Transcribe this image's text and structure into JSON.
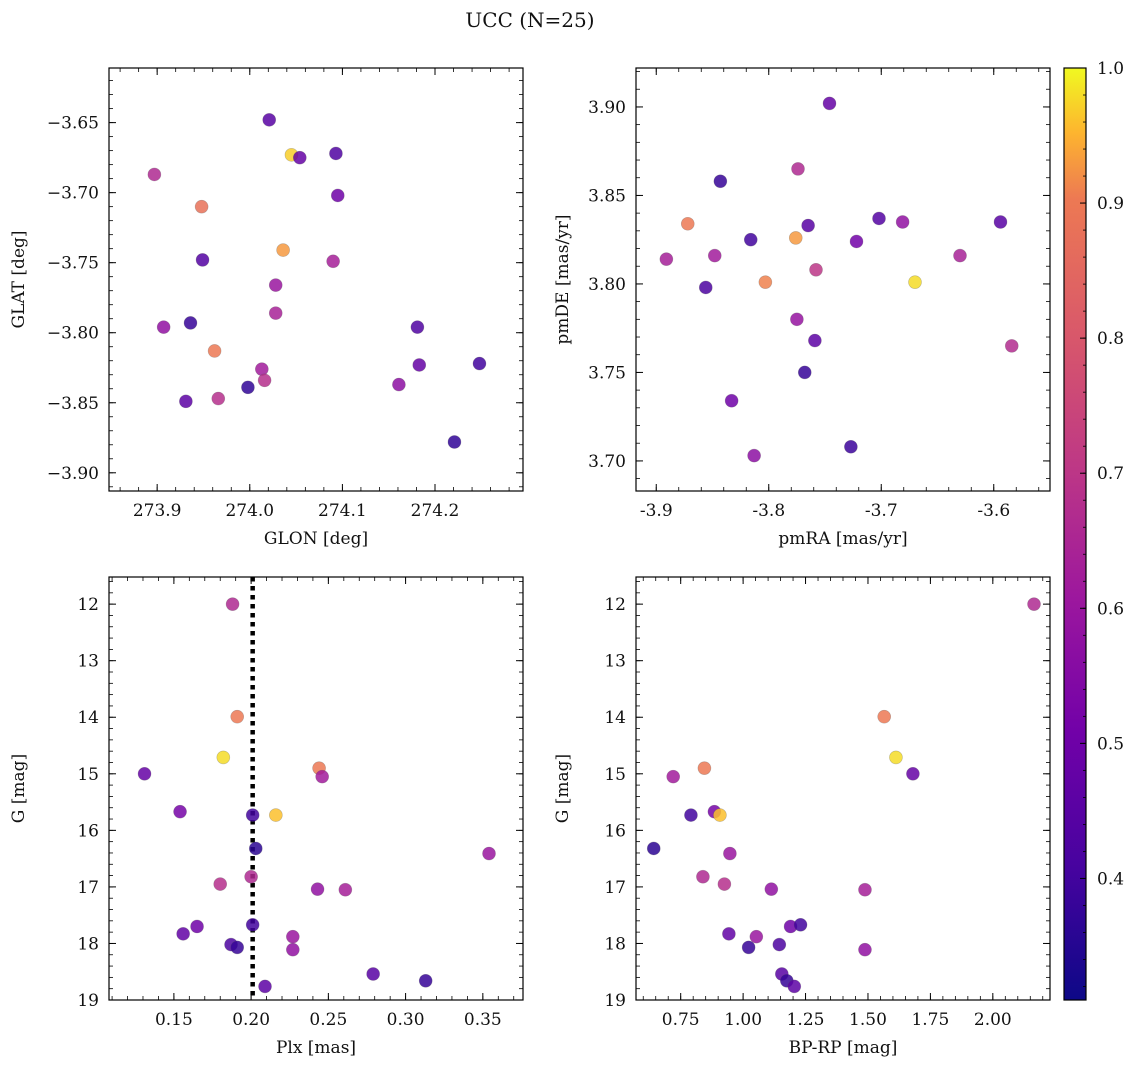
{
  "figure": {
    "suptitle": "UCC (N=25)"
  },
  "colors": {
    "colormap": "plasma",
    "vline": "#000000"
  },
  "colorbar": {
    "range": [
      0.31,
      1.0
    ],
    "ticks": [
      0.4,
      0.5,
      0.6,
      0.7,
      0.8,
      0.9,
      1.0
    ]
  },
  "chart_data": [
    {
      "type": "scatter",
      "panel": "top-left",
      "xlabel": "GLON [deg]",
      "ylabel": "GLAT [deg]",
      "xlim": [
        273.848,
        274.295
      ],
      "ylim": [
        -3.913,
        -3.611
      ],
      "xticks": [
        273.9,
        274.0,
        274.1,
        274.2
      ],
      "xtick_decimals": 1,
      "yticks": [
        -3.65,
        -3.7,
        -3.75,
        -3.8,
        -3.85,
        -3.9
      ],
      "ytick_decimals": 2,
      "y_inverted": false,
      "points": [
        {
          "x": 274.021,
          "y": -3.648,
          "c": 0.45
        },
        {
          "x": 274.045,
          "y": -3.673,
          "c": 0.97
        },
        {
          "x": 274.054,
          "y": -3.675,
          "c": 0.48
        },
        {
          "x": 274.093,
          "y": -3.672,
          "c": 0.43
        },
        {
          "x": 273.897,
          "y": -3.687,
          "c": 0.66
        },
        {
          "x": 274.095,
          "y": -3.702,
          "c": 0.5
        },
        {
          "x": 273.948,
          "y": -3.71,
          "c": 0.88
        },
        {
          "x": 274.036,
          "y": -3.741,
          "c": 0.93
        },
        {
          "x": 273.949,
          "y": -3.748,
          "c": 0.44
        },
        {
          "x": 274.09,
          "y": -3.749,
          "c": 0.63
        },
        {
          "x": 274.028,
          "y": -3.766,
          "c": 0.6
        },
        {
          "x": 274.028,
          "y": -3.786,
          "c": 0.64
        },
        {
          "x": 273.907,
          "y": -3.796,
          "c": 0.58
        },
        {
          "x": 273.936,
          "y": -3.793,
          "c": 0.38
        },
        {
          "x": 274.181,
          "y": -3.796,
          "c": 0.43
        },
        {
          "x": 273.962,
          "y": -3.813,
          "c": 0.9
        },
        {
          "x": 274.013,
          "y": -3.826,
          "c": 0.62
        },
        {
          "x": 274.016,
          "y": -3.834,
          "c": 0.68
        },
        {
          "x": 274.183,
          "y": -3.823,
          "c": 0.48
        },
        {
          "x": 274.248,
          "y": -3.822,
          "c": 0.4
        },
        {
          "x": 274.161,
          "y": -3.837,
          "c": 0.57
        },
        {
          "x": 273.998,
          "y": -3.839,
          "c": 0.37
        },
        {
          "x": 273.931,
          "y": -3.849,
          "c": 0.46
        },
        {
          "x": 273.966,
          "y": -3.847,
          "c": 0.68
        },
        {
          "x": 274.221,
          "y": -3.878,
          "c": 0.37
        }
      ]
    },
    {
      "type": "scatter",
      "panel": "top-right",
      "xlabel": "pmRA [mas/yr]",
      "ylabel": "pmDE [mas/yr]",
      "xlim": [
        -3.918,
        -3.55
      ],
      "ylim": [
        3.683,
        3.922
      ],
      "xticks": [
        -3.9,
        -3.8,
        -3.7,
        -3.6
      ],
      "xtick_decimals": 1,
      "yticks": [
        3.7,
        3.75,
        3.8,
        3.85,
        3.9
      ],
      "ytick_decimals": 2,
      "y_inverted": false,
      "points": [
        {
          "x": -3.746,
          "y": 3.902,
          "c": 0.48
        },
        {
          "x": -3.774,
          "y": 3.865,
          "c": 0.66
        },
        {
          "x": -3.843,
          "y": 3.858,
          "c": 0.38
        },
        {
          "x": -3.872,
          "y": 3.834,
          "c": 0.9
        },
        {
          "x": -3.765,
          "y": 3.833,
          "c": 0.45
        },
        {
          "x": -3.702,
          "y": 3.837,
          "c": 0.44
        },
        {
          "x": -3.681,
          "y": 3.835,
          "c": 0.58
        },
        {
          "x": -3.594,
          "y": 3.835,
          "c": 0.45
        },
        {
          "x": -3.816,
          "y": 3.825,
          "c": 0.4
        },
        {
          "x": -3.776,
          "y": 3.826,
          "c": 0.93
        },
        {
          "x": -3.722,
          "y": 3.824,
          "c": 0.51
        },
        {
          "x": -3.891,
          "y": 3.814,
          "c": 0.63
        },
        {
          "x": -3.848,
          "y": 3.816,
          "c": 0.62
        },
        {
          "x": -3.63,
          "y": 3.816,
          "c": 0.64
        },
        {
          "x": -3.758,
          "y": 3.808,
          "c": 0.7
        },
        {
          "x": -3.856,
          "y": 3.798,
          "c": 0.42
        },
        {
          "x": -3.803,
          "y": 3.801,
          "c": 0.91
        },
        {
          "x": -3.67,
          "y": 3.801,
          "c": 0.98
        },
        {
          "x": -3.775,
          "y": 3.78,
          "c": 0.59
        },
        {
          "x": -3.759,
          "y": 3.768,
          "c": 0.46
        },
        {
          "x": -3.584,
          "y": 3.765,
          "c": 0.67
        },
        {
          "x": -3.768,
          "y": 3.75,
          "c": 0.38
        },
        {
          "x": -3.833,
          "y": 3.734,
          "c": 0.5
        },
        {
          "x": -3.813,
          "y": 3.703,
          "c": 0.57
        },
        {
          "x": -3.727,
          "y": 3.708,
          "c": 0.39
        }
      ]
    },
    {
      "type": "scatter",
      "panel": "bottom-left",
      "xlabel": "Plx [mas]",
      "ylabel": "G [mag]",
      "xlim": [
        0.108,
        0.376
      ],
      "ylim": [
        11.52,
        19.0
      ],
      "xticks": [
        0.15,
        0.2,
        0.25,
        0.3,
        0.35
      ],
      "xtick_decimals": 2,
      "yticks": [
        12,
        13,
        14,
        15,
        16,
        17,
        18,
        19
      ],
      "ytick_decimals": 0,
      "y_inverted": true,
      "vline": 0.201,
      "points": [
        {
          "x": 0.188,
          "y": 12.0,
          "c": 0.66
        },
        {
          "x": 0.191,
          "y": 13.99,
          "c": 0.9
        },
        {
          "x": 0.182,
          "y": 14.71,
          "c": 0.98
        },
        {
          "x": 0.131,
          "y": 15.0,
          "c": 0.48
        },
        {
          "x": 0.244,
          "y": 14.9,
          "c": 0.9
        },
        {
          "x": 0.246,
          "y": 15.05,
          "c": 0.62
        },
        {
          "x": 0.154,
          "y": 15.67,
          "c": 0.52
        },
        {
          "x": 0.216,
          "y": 15.73,
          "c": 0.96
        },
        {
          "x": 0.201,
          "y": 15.73,
          "c": 0.4
        },
        {
          "x": 0.203,
          "y": 16.32,
          "c": 0.36
        },
        {
          "x": 0.354,
          "y": 16.41,
          "c": 0.6
        },
        {
          "x": 0.18,
          "y": 16.95,
          "c": 0.68
        },
        {
          "x": 0.2,
          "y": 16.82,
          "c": 0.66
        },
        {
          "x": 0.243,
          "y": 17.04,
          "c": 0.58
        },
        {
          "x": 0.261,
          "y": 17.05,
          "c": 0.63
        },
        {
          "x": 0.165,
          "y": 17.7,
          "c": 0.5
        },
        {
          "x": 0.156,
          "y": 17.83,
          "c": 0.47
        },
        {
          "x": 0.201,
          "y": 17.67,
          "c": 0.4
        },
        {
          "x": 0.227,
          "y": 17.88,
          "c": 0.6
        },
        {
          "x": 0.227,
          "y": 18.11,
          "c": 0.58
        },
        {
          "x": 0.187,
          "y": 18.02,
          "c": 0.42
        },
        {
          "x": 0.191,
          "y": 18.07,
          "c": 0.38
        },
        {
          "x": 0.279,
          "y": 18.54,
          "c": 0.45
        },
        {
          "x": 0.313,
          "y": 18.66,
          "c": 0.38
        },
        {
          "x": 0.209,
          "y": 18.76,
          "c": 0.46
        }
      ]
    },
    {
      "type": "scatter",
      "panel": "bottom-right",
      "xlabel": "BP-RP [mag]",
      "ylabel": "G [mag]",
      "xlim": [
        0.571,
        2.229
      ],
      "ylim": [
        11.52,
        19.0
      ],
      "xticks": [
        0.75,
        1.0,
        1.25,
        1.5,
        1.75,
        2.0
      ],
      "xtick_decimals": 2,
      "yticks": [
        12,
        13,
        14,
        15,
        16,
        17,
        18,
        19
      ],
      "ytick_decimals": 0,
      "y_inverted": true,
      "points": [
        {
          "x": 2.165,
          "y": 12.0,
          "c": 0.66
        },
        {
          "x": 1.565,
          "y": 13.99,
          "c": 0.9
        },
        {
          "x": 1.612,
          "y": 14.71,
          "c": 0.98
        },
        {
          "x": 1.68,
          "y": 15.0,
          "c": 0.48
        },
        {
          "x": 0.845,
          "y": 14.9,
          "c": 0.9
        },
        {
          "x": 0.72,
          "y": 15.05,
          "c": 0.62
        },
        {
          "x": 0.885,
          "y": 15.67,
          "c": 0.52
        },
        {
          "x": 0.907,
          "y": 15.73,
          "c": 0.96
        },
        {
          "x": 0.791,
          "y": 15.73,
          "c": 0.4
        },
        {
          "x": 0.642,
          "y": 16.32,
          "c": 0.36
        },
        {
          "x": 0.947,
          "y": 16.41,
          "c": 0.6
        },
        {
          "x": 0.925,
          "y": 16.95,
          "c": 0.68
        },
        {
          "x": 0.839,
          "y": 16.82,
          "c": 0.66
        },
        {
          "x": 1.113,
          "y": 17.04,
          "c": 0.58
        },
        {
          "x": 1.488,
          "y": 17.05,
          "c": 0.63
        },
        {
          "x": 1.19,
          "y": 17.7,
          "c": 0.5
        },
        {
          "x": 0.943,
          "y": 17.83,
          "c": 0.47
        },
        {
          "x": 1.23,
          "y": 17.67,
          "c": 0.4
        },
        {
          "x": 1.053,
          "y": 17.88,
          "c": 0.6
        },
        {
          "x": 1.488,
          "y": 18.11,
          "c": 0.58
        },
        {
          "x": 1.145,
          "y": 18.02,
          "c": 0.42
        },
        {
          "x": 1.022,
          "y": 18.07,
          "c": 0.38
        },
        {
          "x": 1.155,
          "y": 18.54,
          "c": 0.45
        },
        {
          "x": 1.175,
          "y": 18.66,
          "c": 0.38
        },
        {
          "x": 1.205,
          "y": 18.76,
          "c": 0.46
        }
      ]
    }
  ]
}
